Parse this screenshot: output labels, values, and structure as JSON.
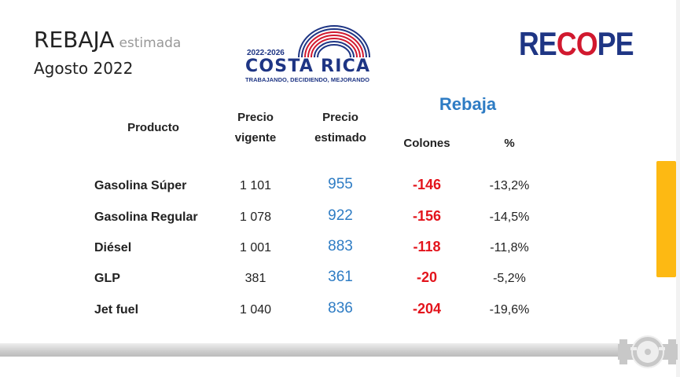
{
  "header": {
    "title": "REBAJA",
    "title_suffix": "estimada",
    "subtitle": "Agosto 2022",
    "gov_logo": {
      "years": "2022-2026",
      "name": "COSTA RICA",
      "tagline": "TRABAJANDO, DECIDIENDO, MEJORANDO"
    },
    "brand_logo": {
      "part1": "RE",
      "part2": "CO",
      "part3": "PE"
    }
  },
  "table": {
    "columns": {
      "product": "Producto",
      "current_1": "Precio",
      "current_2": "vigente",
      "estimated_1": "Precio",
      "estimated_2": "estimado",
      "group": "Rebaja",
      "colones": "Colones",
      "percent": "%"
    },
    "rows": [
      {
        "product": "Gasolina Súper",
        "current": "1 101",
        "estimated": "955",
        "colones": "-146",
        "percent": "-13,2%"
      },
      {
        "product": "Gasolina Regular",
        "current": "1 078",
        "estimated": "922",
        "colones": "-156",
        "percent": "-14,5%"
      },
      {
        "product": "Diésel",
        "current": "1 001",
        "estimated": "883",
        "colones": "-118",
        "percent": "-11,8%"
      },
      {
        "product": "GLP",
        "current": "381",
        "estimated": "361",
        "colones": "-20",
        "percent": "-5,2%"
      },
      {
        "product": "Jet fuel",
        "current": "1 040",
        "estimated": "836",
        "colones": "-204",
        "percent": "-19,6%"
      }
    ]
  },
  "colors": {
    "accent_blue": "#2e7cc4",
    "negative_red": "#e3141c",
    "brand_navy": "#1e3584",
    "yellow": "#fdb913"
  }
}
